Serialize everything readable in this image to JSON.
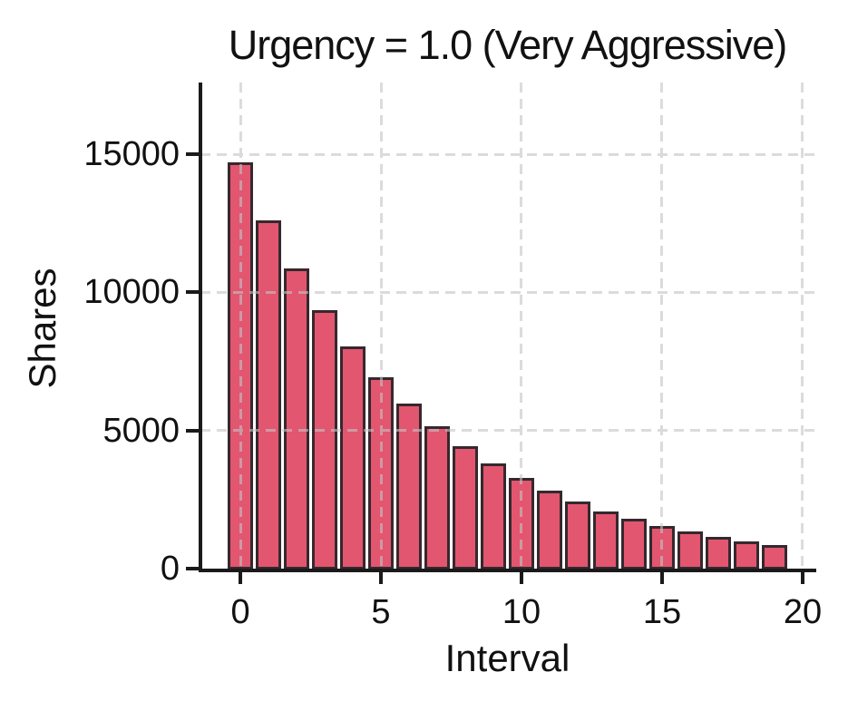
{
  "chart_data": {
    "type": "bar",
    "title": "Urgency = 1.0 (Very Aggressive)",
    "xlabel": "Interval",
    "ylabel": "Shares",
    "categories": [
      0,
      1,
      2,
      3,
      4,
      5,
      6,
      7,
      8,
      9,
      10,
      11,
      12,
      13,
      14,
      15,
      16,
      17,
      18,
      19
    ],
    "values": [
      14700,
      12620,
      10880,
      9360,
      8050,
      6930,
      5960,
      5140,
      4420,
      3800,
      3270,
      2815,
      2425,
      2085,
      1795,
      1545,
      1330,
      1145,
      985,
      850
    ],
    "xticks": [
      0,
      5,
      10,
      15,
      20
    ],
    "yticks": [
      0,
      5000,
      10000,
      15000
    ],
    "xlim": [
      -1.42,
      20.42
    ],
    "ylim": [
      0,
      17600
    ],
    "bar_width_units": 0.9,
    "grid": "dashed gridlines at ticks, drawn over bars",
    "legend": "none",
    "decay_model": "values approx 14660 * exp(-0.15 * i)",
    "colors": {
      "bar_fill": "#e2566f",
      "bar_edge": "#35282e",
      "grid": "#c4c4c4",
      "spine": "#1a1a1a",
      "text": "#111111",
      "background": "#ffffff"
    }
  }
}
